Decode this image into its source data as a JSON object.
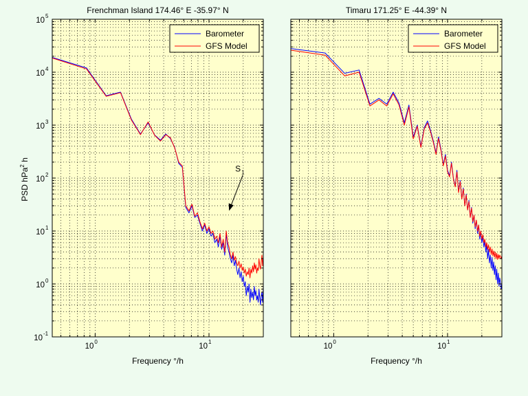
{
  "chart_data": [
    {
      "type": "line",
      "title": "Frenchman Island 174.46° E -35.97° N",
      "xlabel": "Frequency °/h",
      "ylabel": "PSD hPa",
      "ylabel_sup": "2",
      "ylabel_tail": " h",
      "xscale": "log",
      "yscale": "log",
      "xlim": [
        0.42,
        30
      ],
      "ylim": [
        0.1,
        100000
      ],
      "grid": true,
      "legend_position": "top-right",
      "x_ticks": [
        {
          "base": "10",
          "exp": "0",
          "value": 1
        },
        {
          "base": "10",
          "exp": "1",
          "value": 10
        }
      ],
      "y_ticks": [
        {
          "base": "10",
          "exp": "-1",
          "value": 0.1
        },
        {
          "base": "10",
          "exp": "0",
          "value": 1
        },
        {
          "base": "10",
          "exp": "1",
          "value": 10
        },
        {
          "base": "10",
          "exp": "2",
          "value": 100
        },
        {
          "base": "10",
          "exp": "3",
          "value": 1000
        },
        {
          "base": "10",
          "exp": "4",
          "value": 10000
        },
        {
          "base": "10",
          "exp": "5",
          "value": 100000
        }
      ],
      "annotation": {
        "label": "S",
        "sub": "1",
        "x": 14.8,
        "y": 22
      },
      "series": [
        {
          "name": "Barometer",
          "color": "#0000ff",
          "x": [
            0.42,
            0.84,
            1.25,
            1.67,
            2.08,
            2.5,
            2.92,
            3.33,
            3.75,
            4.17,
            4.58,
            5.0,
            5.42,
            5.83,
            6.25,
            6.67,
            7.08,
            7.5,
            7.92,
            8.33,
            8.75,
            9.17,
            9.58,
            10.0,
            10.42,
            10.83,
            11.25,
            11.67,
            12.08,
            12.5,
            12.92,
            13.33,
            13.75,
            14.17,
            14.58,
            15.0,
            15.42,
            15.83,
            16.25,
            16.67,
            17.08,
            17.5,
            17.92,
            18.33,
            18.75,
            19.17,
            19.58,
            20.0,
            20.42,
            20.83,
            21.25,
            21.67,
            22.08,
            22.5,
            22.92,
            23.33,
            23.75,
            24.17,
            24.58,
            25.0,
            25.42,
            25.83,
            26.25,
            26.67,
            27.08,
            27.5,
            27.92,
            28.33,
            28.75,
            29.17,
            29.58,
            30.0
          ],
          "y": [
            19000,
            12000,
            3600,
            4200,
            1300,
            680,
            1100,
            650,
            520,
            680,
            560,
            380,
            190,
            160,
            28,
            22,
            30,
            18,
            20,
            14,
            10,
            13,
            9,
            11,
            8,
            9,
            6,
            7,
            5,
            8,
            4.5,
            6,
            3.5,
            9,
            5,
            4,
            3,
            2.5,
            3.5,
            2.2,
            2.8,
            1.9,
            1.5,
            2.0,
            1.3,
            1.7,
            1.1,
            1.4,
            0.9,
            1.1,
            0.6,
            0.9,
            0.7,
            1.0,
            0.45,
            0.8,
            0.55,
            0.7,
            0.5,
            0.9,
            0.6,
            0.75,
            0.5,
            0.6,
            0.45,
            0.8,
            0.55,
            0.4,
            0.6,
            0.7,
            0.45,
            0.9
          ]
        },
        {
          "name": "GFS Model",
          "color": "#ff0000",
          "x": [
            0.42,
            0.84,
            1.25,
            1.67,
            2.08,
            2.5,
            2.92,
            3.33,
            3.75,
            4.17,
            4.58,
            5.0,
            5.42,
            5.83,
            6.25,
            6.67,
            7.08,
            7.5,
            7.92,
            8.33,
            8.75,
            9.17,
            9.58,
            10.0,
            10.42,
            10.83,
            11.25,
            11.67,
            12.08,
            12.5,
            12.92,
            13.33,
            13.75,
            14.17,
            14.58,
            15.0,
            15.42,
            15.83,
            16.25,
            16.67,
            17.08,
            17.5,
            17.92,
            18.33,
            18.75,
            19.17,
            19.58,
            20.0,
            20.42,
            20.83,
            21.25,
            21.67,
            22.08,
            22.5,
            22.92,
            23.33,
            23.75,
            24.17,
            24.58,
            25.0,
            25.42,
            25.83,
            26.25,
            26.67,
            27.08,
            27.5,
            27.92,
            28.33,
            28.75,
            29.17,
            29.58,
            30.0
          ],
          "y": [
            18500,
            11500,
            3500,
            4100,
            1250,
            660,
            1150,
            640,
            500,
            660,
            580,
            370,
            200,
            170,
            30,
            24,
            32,
            19,
            22,
            15,
            11,
            14,
            10,
            12,
            9,
            10,
            7,
            8,
            6,
            9,
            5,
            7,
            4,
            10,
            6,
            5,
            3.5,
            3,
            4,
            2.8,
            3.3,
            2.5,
            2.2,
            2.7,
            2.0,
            2.4,
            1.8,
            2.1,
            1.6,
            1.9,
            1.4,
            1.7,
            1.5,
            2.0,
            1.3,
            1.9,
            1.6,
            2.2,
            1.7,
            2.5,
            1.9,
            2.3,
            1.6,
            2.0,
            1.8,
            3.0,
            2.2,
            1.9,
            2.6,
            3.5,
            2.2,
            3.2
          ]
        }
      ]
    },
    {
      "type": "line",
      "title": "Timaru 171.25° E -44.39° N",
      "xlabel": "Frequency °/h",
      "xscale": "log",
      "yscale": "log",
      "xlim": [
        0.42,
        30
      ],
      "ylim": [
        0.1,
        100000
      ],
      "grid": true,
      "legend_position": "top-right",
      "x_ticks": [
        {
          "base": "10",
          "exp": "0",
          "value": 1
        },
        {
          "base": "10",
          "exp": "1",
          "value": 10
        }
      ],
      "series": [
        {
          "name": "Barometer",
          "color": "#0000ff",
          "x": [
            0.42,
            0.84,
            1.25,
            1.67,
            2.08,
            2.5,
            2.92,
            3.33,
            3.75,
            4.17,
            4.58,
            5.0,
            5.42,
            5.83,
            6.25,
            6.67,
            7.08,
            7.5,
            7.92,
            8.33,
            8.75,
            9.17,
            9.58,
            10.0,
            10.42,
            10.83,
            11.25,
            11.67,
            12.08,
            12.5,
            12.92,
            13.33,
            13.75,
            14.17,
            14.58,
            15.0,
            15.42,
            15.83,
            16.25,
            16.67,
            17.08,
            17.5,
            17.92,
            18.33,
            18.75,
            19.17,
            19.58,
            20.0,
            20.42,
            20.83,
            21.25,
            21.67,
            22.08,
            22.5,
            22.92,
            23.33,
            23.75,
            24.17,
            24.58,
            25.0,
            25.42,
            25.83,
            26.25,
            26.67,
            27.08,
            27.5,
            27.92,
            28.33,
            28.75,
            29.17,
            29.58,
            30.0
          ],
          "y": [
            28000,
            23000,
            9500,
            11000,
            2500,
            3200,
            2500,
            4200,
            2600,
            1100,
            2400,
            600,
            1000,
            400,
            900,
            1200,
            800,
            500,
            300,
            600,
            350,
            180,
            280,
            140,
            110,
            200,
            100,
            70,
            140,
            55,
            90,
            40,
            65,
            30,
            50,
            25,
            38,
            18,
            28,
            14,
            20,
            11,
            16,
            9,
            13,
            7,
            10,
            6,
            8,
            5,
            6.5,
            4,
            5.5,
            3,
            4.5,
            2.5,
            3.5,
            2,
            3.2,
            1.8,
            2.6,
            1.5,
            2.2,
            1.2,
            1.9,
            1.0,
            1.6,
            0.9,
            1.3,
            1.1,
            0.8,
            1.0
          ]
        },
        {
          "name": "GFS Model",
          "color": "#ff0000",
          "x": [
            0.42,
            0.84,
            1.25,
            1.67,
            2.08,
            2.5,
            2.92,
            3.33,
            3.75,
            4.17,
            4.58,
            5.0,
            5.42,
            5.83,
            6.25,
            6.67,
            7.08,
            7.5,
            7.92,
            8.33,
            8.75,
            9.17,
            9.58,
            10.0,
            10.42,
            10.83,
            11.25,
            11.67,
            12.08,
            12.5,
            12.92,
            13.33,
            13.75,
            14.17,
            14.58,
            15.0,
            15.42,
            15.83,
            16.25,
            16.67,
            17.08,
            17.5,
            17.92,
            18.33,
            18.75,
            19.17,
            19.58,
            20.0,
            20.42,
            20.83,
            21.25,
            21.67,
            22.08,
            22.5,
            22.92,
            23.33,
            23.75,
            24.17,
            24.58,
            25.0,
            25.42,
            25.83,
            26.25,
            26.67,
            27.08,
            27.5,
            27.92,
            28.33,
            28.75,
            29.17,
            29.58,
            30.0
          ],
          "y": [
            26000,
            21000,
            8500,
            10000,
            2300,
            3000,
            2300,
            3900,
            2400,
            1000,
            2200,
            550,
            950,
            380,
            850,
            1100,
            750,
            470,
            280,
            560,
            330,
            170,
            260,
            130,
            105,
            190,
            95,
            68,
            130,
            53,
            85,
            40,
            62,
            30,
            48,
            25,
            36,
            18,
            27,
            15,
            20,
            12,
            16,
            10,
            13,
            8,
            10,
            7,
            8.5,
            6,
            7,
            5,
            6,
            4.5,
            5.5,
            4,
            5,
            3.6,
            4.6,
            3.4,
            4.2,
            3.2,
            4.0,
            3.0,
            3.8,
            2.9,
            3.6,
            3.0,
            3.5,
            3.3,
            3.0,
            3.4
          ]
        }
      ]
    }
  ]
}
